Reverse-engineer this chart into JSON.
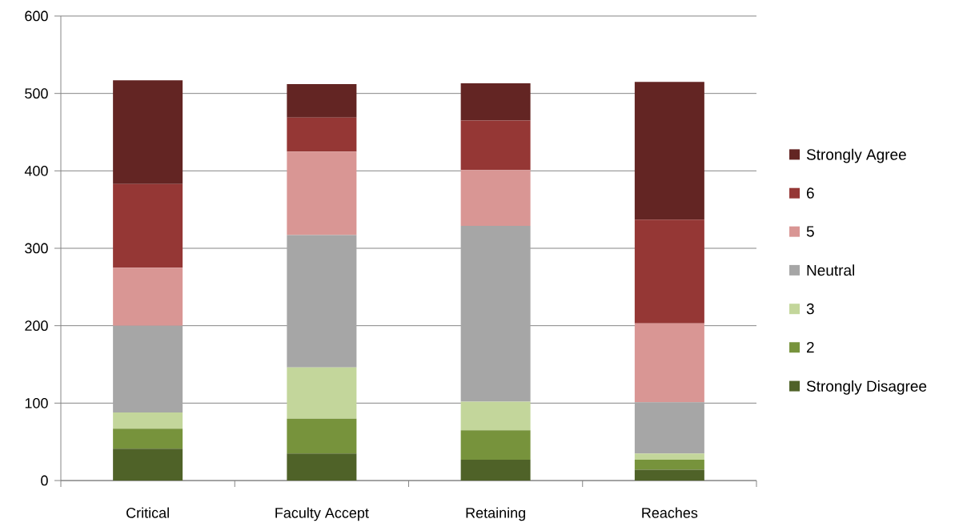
{
  "chart_data": {
    "type": "bar",
    "stacked": true,
    "categories": [
      "Critical",
      "Faculty Accept",
      "Retaining",
      "Reaches"
    ],
    "series": [
      {
        "name": "Strongly Disagree",
        "color": "#4f6228",
        "values": [
          41,
          35,
          27,
          14
        ]
      },
      {
        "name": "2",
        "color": "#77933c",
        "values": [
          26,
          45,
          38,
          13
        ]
      },
      {
        "name": "3",
        "color": "#c3d69b",
        "values": [
          21,
          66,
          37,
          8
        ]
      },
      {
        "name": "Neutral",
        "color": "#a6a6a6",
        "values": [
          112,
          171,
          227,
          66
        ]
      },
      {
        "name": "5",
        "color": "#d99694",
        "values": [
          75,
          108,
          72,
          102
        ]
      },
      {
        "name": "6",
        "color": "#953735",
        "values": [
          108,
          44,
          64,
          134
        ]
      },
      {
        "name": "Strongly Agree",
        "color": "#632523",
        "values": [
          134,
          43,
          48,
          178
        ]
      }
    ],
    "ylim": [
      0,
      600
    ],
    "yticks": [
      0,
      100,
      200,
      300,
      400,
      500,
      600
    ],
    "grid": "y",
    "legend": "right"
  }
}
